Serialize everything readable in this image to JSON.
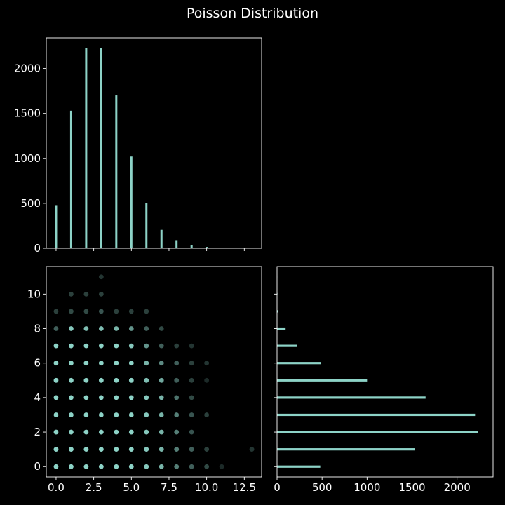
{
  "title": "Poisson Distribution",
  "colors": {
    "background": "#000000",
    "mark": "#8dd3c7",
    "frame": "#ffffff",
    "text": "#ffffff"
  },
  "chart_data": [
    {
      "type": "bar",
      "panel": "top-left",
      "title": "",
      "xlabel": "",
      "ylabel": "",
      "xlim": [
        -0.65,
        13.65
      ],
      "ylim": [
        0,
        2340
      ],
      "x_tick_labels_shown": false,
      "y_ticks": [
        0,
        500,
        1000,
        1500,
        2000
      ],
      "categories": [
        0,
        1,
        2,
        3,
        4,
        5,
        6,
        7,
        8,
        9,
        10,
        11,
        12,
        13
      ],
      "values": [
        480,
        1530,
        2230,
        2225,
        1700,
        1020,
        500,
        205,
        90,
        35,
        15,
        3,
        1,
        1
      ]
    },
    {
      "type": "scatter",
      "panel": "bottom-left",
      "title": "",
      "xlabel": "",
      "ylabel": "",
      "xlim": [
        -0.65,
        13.65
      ],
      "ylim": [
        -0.6,
        11.6
      ],
      "x_ticks": [
        "0.0",
        "2.5",
        "5.0",
        "7.5",
        "10.0",
        "12.5"
      ],
      "y_ticks": [
        "0",
        "2",
        "4",
        "6",
        "8",
        "10"
      ],
      "point_opacity": "varies with count",
      "points": [
        [
          0,
          0
        ],
        [
          1,
          0
        ],
        [
          2,
          0
        ],
        [
          3,
          0
        ],
        [
          4,
          0
        ],
        [
          5,
          0
        ],
        [
          6,
          0
        ],
        [
          7,
          0
        ],
        [
          8,
          0
        ],
        [
          9,
          0
        ],
        [
          10,
          0
        ],
        [
          11,
          0
        ],
        [
          0,
          1
        ],
        [
          1,
          1
        ],
        [
          2,
          1
        ],
        [
          3,
          1
        ],
        [
          4,
          1
        ],
        [
          5,
          1
        ],
        [
          6,
          1
        ],
        [
          7,
          1
        ],
        [
          8,
          1
        ],
        [
          9,
          1
        ],
        [
          10,
          1
        ],
        [
          13,
          1
        ],
        [
          0,
          2
        ],
        [
          1,
          2
        ],
        [
          2,
          2
        ],
        [
          3,
          2
        ],
        [
          4,
          2
        ],
        [
          5,
          2
        ],
        [
          6,
          2
        ],
        [
          7,
          2
        ],
        [
          8,
          2
        ],
        [
          9,
          2
        ],
        [
          0,
          3
        ],
        [
          1,
          3
        ],
        [
          2,
          3
        ],
        [
          3,
          3
        ],
        [
          4,
          3
        ],
        [
          5,
          3
        ],
        [
          6,
          3
        ],
        [
          7,
          3
        ],
        [
          8,
          3
        ],
        [
          9,
          3
        ],
        [
          10,
          3
        ],
        [
          0,
          4
        ],
        [
          1,
          4
        ],
        [
          2,
          4
        ],
        [
          3,
          4
        ],
        [
          4,
          4
        ],
        [
          5,
          4
        ],
        [
          6,
          4
        ],
        [
          7,
          4
        ],
        [
          8,
          4
        ],
        [
          9,
          4
        ],
        [
          0,
          5
        ],
        [
          1,
          5
        ],
        [
          2,
          5
        ],
        [
          3,
          5
        ],
        [
          4,
          5
        ],
        [
          5,
          5
        ],
        [
          6,
          5
        ],
        [
          7,
          5
        ],
        [
          8,
          5
        ],
        [
          9,
          5
        ],
        [
          10,
          5
        ],
        [
          0,
          6
        ],
        [
          1,
          6
        ],
        [
          2,
          6
        ],
        [
          3,
          6
        ],
        [
          4,
          6
        ],
        [
          5,
          6
        ],
        [
          6,
          6
        ],
        [
          7,
          6
        ],
        [
          8,
          6
        ],
        [
          9,
          6
        ],
        [
          10,
          6
        ],
        [
          0,
          7
        ],
        [
          1,
          7
        ],
        [
          2,
          7
        ],
        [
          3,
          7
        ],
        [
          4,
          7
        ],
        [
          5,
          7
        ],
        [
          6,
          7
        ],
        [
          7,
          7
        ],
        [
          8,
          7
        ],
        [
          9,
          7
        ],
        [
          0,
          8
        ],
        [
          1,
          8
        ],
        [
          2,
          8
        ],
        [
          3,
          8
        ],
        [
          4,
          8
        ],
        [
          5,
          8
        ],
        [
          6,
          8
        ],
        [
          7,
          8
        ],
        [
          0,
          9
        ],
        [
          1,
          9
        ],
        [
          2,
          9
        ],
        [
          3,
          9
        ],
        [
          4,
          9
        ],
        [
          5,
          9
        ],
        [
          6,
          9
        ],
        [
          1,
          10
        ],
        [
          2,
          10
        ],
        [
          3,
          10
        ],
        [
          3,
          11
        ]
      ],
      "point_alpha": [
        1,
        1,
        1,
        1,
        1,
        1,
        0.95,
        0.85,
        0.6,
        0.45,
        0.35,
        0.2,
        1,
        1,
        1,
        1,
        1,
        1,
        0.95,
        0.85,
        0.6,
        0.45,
        0.3,
        0.25,
        1,
        1,
        1,
        1,
        1,
        1,
        0.95,
        0.85,
        0.6,
        0.4,
        1,
        1,
        1,
        1,
        1,
        1,
        0.95,
        0.85,
        0.6,
        0.4,
        0.3,
        1,
        1,
        1,
        1,
        1,
        1,
        0.95,
        0.85,
        0.55,
        0.35,
        1,
        1,
        1,
        1,
        1,
        1,
        0.9,
        0.8,
        0.45,
        0.3,
        0.2,
        1,
        1,
        1,
        1,
        1,
        1,
        0.85,
        0.65,
        0.45,
        0.3,
        0.25,
        1,
        1,
        1,
        1,
        1,
        0.95,
        0.7,
        0.45,
        0.3,
        0.25,
        0.45,
        0.95,
        0.9,
        0.9,
        0.85,
        0.7,
        0.45,
        0.35,
        0.3,
        0.35,
        0.35,
        0.4,
        0.3,
        0.3,
        0.3,
        0.3,
        0.3,
        0.3,
        0.25
      ]
    },
    {
      "type": "bar",
      "orientation": "horizontal",
      "panel": "bottom-right",
      "title": "",
      "xlabel": "",
      "ylabel": "",
      "xlim": [
        0,
        2400
      ],
      "ylim": [
        -0.6,
        11.6
      ],
      "x_ticks": [
        "0",
        "500",
        "1000",
        "1500",
        "2000"
      ],
      "y_tick_labels_shown": false,
      "categories": [
        0,
        1,
        2,
        3,
        4,
        5,
        6,
        7,
        8,
        9,
        10,
        11
      ],
      "values": [
        480,
        1530,
        2230,
        2200,
        1650,
        1000,
        490,
        220,
        95,
        15,
        5,
        2
      ]
    }
  ]
}
